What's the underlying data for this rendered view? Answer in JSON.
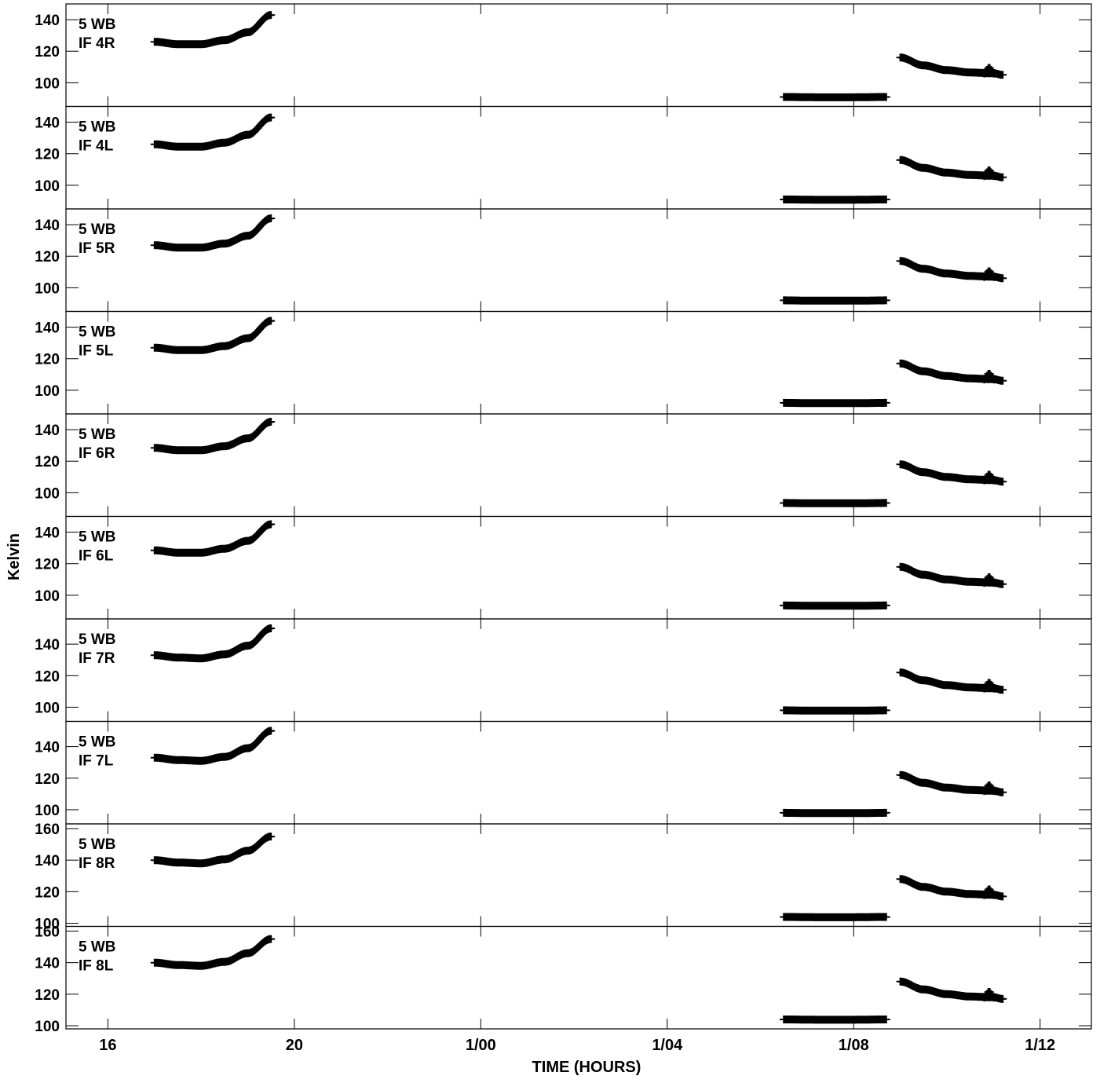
{
  "chart_data": {
    "type": "scatter",
    "marker": "plus",
    "color": "#000000",
    "xlabel": "TIME (HOURS)",
    "ylabel": "Kelvin",
    "x_unit": "hours",
    "xlim": [
      15.1,
      37.1
    ],
    "x_ticks": [
      {
        "value": 16,
        "label": "16"
      },
      {
        "value": 20,
        "label": "20"
      },
      {
        "value": 24,
        "label": "1/00"
      },
      {
        "value": 28,
        "label": "1/04"
      },
      {
        "value": 32,
        "label": "1/08"
      },
      {
        "value": 36,
        "label": "1/12"
      }
    ],
    "panels": [
      {
        "label_line1": "5 WB",
        "label_line2": "IF 4R",
        "ylim": [
          85,
          150
        ],
        "yticks": [
          "100",
          "120",
          "140"
        ],
        "series": {
          "segment1": {
            "x": [
              17.0,
              17.5,
              18.0,
              18.5,
              19.0,
              19.5
            ],
            "y": [
              126,
              124.5,
              124.5,
              127,
              132,
              143
            ]
          },
          "segment2": {
            "x": [
              30.5,
              31.2,
              32.0,
              32.7
            ],
            "y": [
              91,
              90.8,
              90.8,
              91
            ]
          },
          "segment3": {
            "x": [
              33.0,
              33.5,
              34.0,
              34.5,
              35.0,
              35.2
            ],
            "y": [
              116,
              111,
              108,
              106.5,
              106,
              105
            ]
          },
          "spike": {
            "x": 34.9,
            "y": 110
          }
        }
      },
      {
        "label_line1": "5 WB",
        "label_line2": "IF 4L",
        "ylim": [
          85,
          150
        ],
        "yticks": [
          "100",
          "120",
          "140"
        ],
        "series": {
          "segment1": {
            "x": [
              17.0,
              17.5,
              18.0,
              18.5,
              19.0,
              19.5
            ],
            "y": [
              126,
              124.5,
              124.5,
              127,
              132,
              143
            ]
          },
          "segment2": {
            "x": [
              30.5,
              31.2,
              32.0,
              32.7
            ],
            "y": [
              91,
              90.8,
              90.8,
              91
            ]
          },
          "segment3": {
            "x": [
              33.0,
              33.5,
              34.0,
              34.5,
              35.0,
              35.2
            ],
            "y": [
              116,
              111,
              108,
              106.5,
              106,
              105
            ]
          },
          "spike": {
            "x": 34.9,
            "y": 110
          }
        }
      },
      {
        "label_line1": "5 WB",
        "label_line2": "IF 5R",
        "ylim": [
          85,
          150
        ],
        "yticks": [
          "100",
          "120",
          "140"
        ],
        "series": {
          "segment1": {
            "x": [
              17.0,
              17.5,
              18.0,
              18.5,
              19.0,
              19.5
            ],
            "y": [
              127,
              125.5,
              125.5,
              128,
              133,
              144
            ]
          },
          "segment2": {
            "x": [
              30.5,
              31.2,
              32.0,
              32.7
            ],
            "y": [
              92,
              91.8,
              91.8,
              92
            ]
          },
          "segment3": {
            "x": [
              33.0,
              33.5,
              34.0,
              34.5,
              35.0,
              35.2
            ],
            "y": [
              117,
              112,
              109,
              107.5,
              107,
              106
            ]
          },
          "spike": {
            "x": 34.9,
            "y": 111
          }
        }
      },
      {
        "label_line1": "5 WB",
        "label_line2": "IF 5L",
        "ylim": [
          85,
          150
        ],
        "yticks": [
          "100",
          "120",
          "140"
        ],
        "series": {
          "segment1": {
            "x": [
              17.0,
              17.5,
              18.0,
              18.5,
              19.0,
              19.5
            ],
            "y": [
              127,
              125.5,
              125.5,
              128,
              133,
              144
            ]
          },
          "segment2": {
            "x": [
              30.5,
              31.2,
              32.0,
              32.7
            ],
            "y": [
              92,
              91.8,
              91.8,
              92
            ]
          },
          "segment3": {
            "x": [
              33.0,
              33.5,
              34.0,
              34.5,
              35.0,
              35.2
            ],
            "y": [
              117,
              112,
              109,
              107.5,
              107,
              106
            ]
          },
          "spike": {
            "x": 34.9,
            "y": 111
          }
        }
      },
      {
        "label_line1": "5 WB",
        "label_line2": "IF 6R",
        "ylim": [
          85,
          150
        ],
        "yticks": [
          "100",
          "120",
          "140"
        ],
        "series": {
          "segment1": {
            "x": [
              17.0,
              17.5,
              18.0,
              18.5,
              19.0,
              19.5
            ],
            "y": [
              128.5,
              127,
              127,
              129.5,
              134.5,
              145
            ]
          },
          "segment2": {
            "x": [
              30.5,
              31.2,
              32.0,
              32.7
            ],
            "y": [
              93.5,
              93.3,
              93.3,
              93.5
            ]
          },
          "segment3": {
            "x": [
              33.0,
              33.5,
              34.0,
              34.5,
              35.0,
              35.2
            ],
            "y": [
              118,
              113,
              110,
              108.5,
              108,
              107
            ]
          },
          "spike": {
            "x": 34.9,
            "y": 112
          }
        }
      },
      {
        "label_line1": "5 WB",
        "label_line2": "IF 6L",
        "ylim": [
          85,
          150
        ],
        "yticks": [
          "100",
          "120",
          "140"
        ],
        "series": {
          "segment1": {
            "x": [
              17.0,
              17.5,
              18.0,
              18.5,
              19.0,
              19.5
            ],
            "y": [
              128.5,
              127,
              127,
              129.5,
              134.5,
              145
            ]
          },
          "segment2": {
            "x": [
              30.5,
              31.2,
              32.0,
              32.7
            ],
            "y": [
              93.5,
              93.3,
              93.3,
              93.5
            ]
          },
          "segment3": {
            "x": [
              33.0,
              33.5,
              34.0,
              34.5,
              35.0,
              35.2
            ],
            "y": [
              118,
              113,
              110,
              108.5,
              108,
              107
            ]
          },
          "spike": {
            "x": 34.9,
            "y": 112
          }
        }
      },
      {
        "label_line1": "5 WB",
        "label_line2": "IF 7R",
        "ylim": [
          91,
          156
        ],
        "yticks": [
          "100",
          "120",
          "140"
        ],
        "series": {
          "segment1": {
            "x": [
              17.0,
              17.5,
              18.0,
              18.5,
              19.0,
              19.5
            ],
            "y": [
              133,
              131.5,
              131,
              133.5,
              139,
              150
            ]
          },
          "segment2": {
            "x": [
              30.5,
              31.2,
              32.0,
              32.7
            ],
            "y": [
              98,
              97.8,
              97.8,
              98
            ]
          },
          "segment3": {
            "x": [
              33.0,
              33.5,
              34.0,
              34.5,
              35.0,
              35.2
            ],
            "y": [
              122,
              117,
              114,
              112.5,
              112,
              111
            ]
          },
          "spike": {
            "x": 34.9,
            "y": 116
          }
        }
      },
      {
        "label_line1": "5 WB",
        "label_line2": "IF 7L",
        "ylim": [
          91,
          156
        ],
        "yticks": [
          "100",
          "120",
          "140"
        ],
        "series": {
          "segment1": {
            "x": [
              17.0,
              17.5,
              18.0,
              18.5,
              19.0,
              19.5
            ],
            "y": [
              133,
              131.5,
              131,
              133.5,
              139,
              150
            ]
          },
          "segment2": {
            "x": [
              30.5,
              31.2,
              32.0,
              32.7
            ],
            "y": [
              98,
              97.8,
              97.8,
              98
            ]
          },
          "segment3": {
            "x": [
              33.0,
              33.5,
              34.0,
              34.5,
              35.0,
              35.2
            ],
            "y": [
              122,
              117,
              114,
              112.5,
              112,
              111
            ]
          },
          "spike": {
            "x": 34.9,
            "y": 116
          }
        }
      },
      {
        "label_line1": "5 WB",
        "label_line2": "IF 8R",
        "ylim": [
          98,
          163
        ],
        "yticks": [
          "100",
          "120",
          "140",
          "160"
        ],
        "series": {
          "segment1": {
            "x": [
              17.0,
              17.5,
              18.0,
              18.5,
              19.0,
              19.5
            ],
            "y": [
              140,
              138.5,
              138,
              140.5,
              146,
              155
            ]
          },
          "segment2": {
            "x": [
              30.5,
              31.2,
              32.0,
              32.7
            ],
            "y": [
              104,
              103.8,
              103.8,
              104
            ]
          },
          "segment3": {
            "x": [
              33.0,
              33.5,
              34.0,
              34.5,
              35.0,
              35.2
            ],
            "y": [
              128,
              123,
              120,
              118.5,
              118,
              117
            ]
          },
          "spike": {
            "x": 34.9,
            "y": 122
          }
        }
      },
      {
        "label_line1": "5 WB",
        "label_line2": "IF 8L",
        "ylim": [
          98,
          163
        ],
        "yticks": [
          "100",
          "120",
          "140",
          "160"
        ],
        "series": {
          "segment1": {
            "x": [
              17.0,
              17.5,
              18.0,
              18.5,
              19.0,
              19.5
            ],
            "y": [
              140,
              138.5,
              138,
              140.5,
              146,
              155
            ]
          },
          "segment2": {
            "x": [
              30.5,
              31.2,
              32.0,
              32.7
            ],
            "y": [
              104,
              103.8,
              103.8,
              104
            ]
          },
          "segment3": {
            "x": [
              33.0,
              33.5,
              34.0,
              34.5,
              35.0,
              35.2
            ],
            "y": [
              128,
              123,
              120,
              118.5,
              118,
              117
            ]
          },
          "spike": {
            "x": 34.9,
            "y": 122
          }
        }
      }
    ]
  }
}
